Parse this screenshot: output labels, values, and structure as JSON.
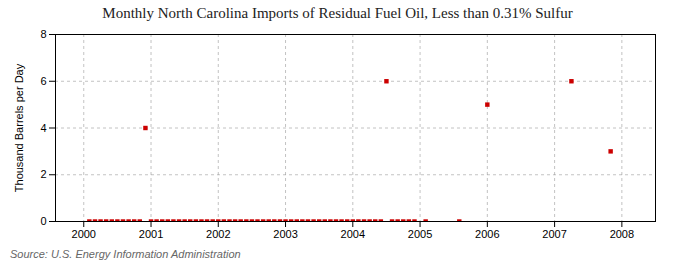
{
  "chart_data": {
    "type": "scatter",
    "title": "Monthly North Carolina Imports of Residual Fuel Oil, Less than 0.31% Sulfur",
    "ylabel": "Thousand Barrels per Day",
    "source": "Source: U.S. Energy Information Administration",
    "color": "#cc0000",
    "marker": "square",
    "grid": true,
    "xlim": [
      1999.58,
      2008.5
    ],
    "ylim": [
      0,
      8
    ],
    "xticks": [
      2000,
      2001,
      2002,
      2003,
      2004,
      2005,
      2006,
      2007,
      2008
    ],
    "yticks": [
      0,
      2,
      4,
      6,
      8
    ],
    "x": [
      2000.083,
      2000.167,
      2000.25,
      2000.333,
      2000.417,
      2000.5,
      2000.583,
      2000.667,
      2000.75,
      2000.833,
      2000.917,
      2001.0,
      2001.083,
      2001.167,
      2001.25,
      2001.333,
      2001.417,
      2001.5,
      2001.583,
      2001.667,
      2001.75,
      2001.833,
      2001.917,
      2002.0,
      2002.083,
      2002.167,
      2002.25,
      2002.333,
      2002.417,
      2002.5,
      2002.583,
      2002.667,
      2002.75,
      2002.833,
      2002.917,
      2003.0,
      2003.083,
      2003.167,
      2003.25,
      2003.333,
      2003.417,
      2003.5,
      2003.583,
      2003.667,
      2003.75,
      2003.833,
      2003.917,
      2004.0,
      2004.083,
      2004.167,
      2004.25,
      2004.333,
      2004.417,
      2004.5,
      2004.583,
      2004.667,
      2004.75,
      2004.833,
      2004.917,
      2005.083,
      2005.583,
      2006.0,
      2007.25,
      2007.833
    ],
    "values": [
      0.0,
      0.0,
      0.0,
      0.0,
      0.0,
      0.0,
      0.0,
      0.0,
      0.0,
      0.0,
      4.0,
      0.0,
      0.0,
      0.0,
      0.0,
      0.0,
      0.0,
      0.0,
      0.0,
      0.0,
      0.0,
      0.0,
      0.0,
      0.0,
      0.0,
      0.0,
      0.0,
      0.0,
      0.0,
      0.0,
      0.0,
      0.0,
      0.0,
      0.0,
      0.0,
      0.0,
      0.0,
      0.0,
      0.0,
      0.0,
      0.0,
      0.0,
      0.0,
      0.0,
      0.0,
      0.0,
      0.0,
      0.0,
      0.0,
      0.0,
      0.0,
      0.0,
      0.0,
      6.0,
      0.0,
      0.0,
      0.0,
      0.0,
      0.0,
      0.0,
      0.0,
      5.0,
      6.0,
      3.0
    ]
  }
}
